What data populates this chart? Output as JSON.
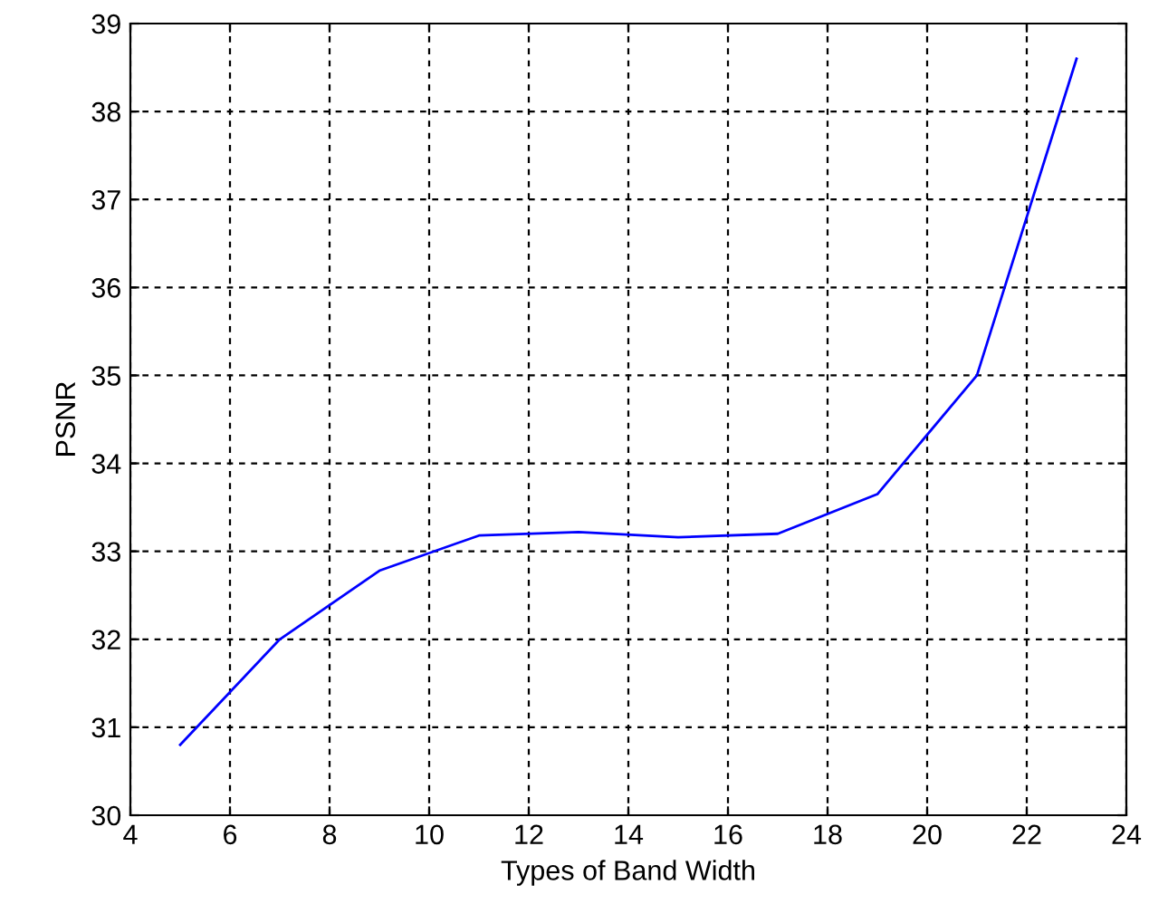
{
  "chart_data": {
    "type": "line",
    "xlabel": "Types of Band Width",
    "ylabel": "PSNR",
    "x": [
      5,
      7,
      9,
      11,
      13,
      15,
      17,
      19,
      21,
      23
    ],
    "series": [
      {
        "color": "#0000ff",
        "values": [
          30.8,
          32.0,
          32.78,
          33.18,
          33.22,
          33.16,
          33.2,
          33.65,
          35.0,
          38.6
        ]
      }
    ],
    "xlim": [
      4,
      24
    ],
    "xticks": [
      4,
      6,
      8,
      10,
      12,
      14,
      16,
      18,
      20,
      22,
      24
    ],
    "ylim": [
      30,
      39
    ],
    "yticks": [
      30,
      31,
      32,
      33,
      34,
      35,
      36,
      37,
      38,
      39
    ],
    "grid": true,
    "line_style": "solid",
    "marker": "none"
  }
}
